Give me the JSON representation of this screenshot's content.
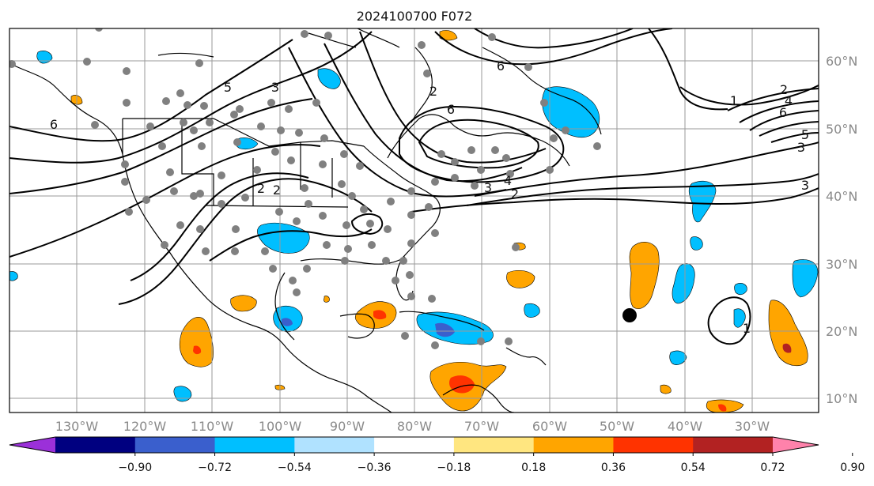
{
  "title": "2024100700 F072",
  "lon_labels": [
    "130°W",
    "120°W",
    "110°W",
    "100°W",
    "90°W",
    "80°W",
    "70°W",
    "60°W",
    "50°W",
    "40°W",
    "30°W"
  ],
  "lat_labels": [
    "60°N",
    "50°N",
    "40°N",
    "30°N",
    "20°N",
    "10°N"
  ],
  "colorbar": {
    "tick_labels": [
      "−0.90",
      "−0.72",
      "−0.54",
      "−0.36",
      "−0.18",
      "0.18",
      "0.36",
      "0.54",
      "0.72",
      "0.90"
    ],
    "colors": [
      "#9b30d9",
      "#000080",
      "#3a5fcd",
      "#00bfff",
      "#b0e2ff",
      "#ffffff",
      "#ffe680",
      "#ffa500",
      "#ff3300",
      "#b22222",
      "#ff82ab"
    ]
  },
  "contour_labels": [
    {
      "text": "6"
    },
    {
      "text": "5"
    },
    {
      "text": "3"
    },
    {
      "text": "2"
    },
    {
      "text": "2"
    },
    {
      "text": "6"
    },
    {
      "text": "6"
    },
    {
      "text": "4"
    },
    {
      "text": "3"
    },
    {
      "text": "2"
    },
    {
      "text": "2"
    },
    {
      "text": "1"
    },
    {
      "text": "2"
    },
    {
      "text": "4"
    },
    {
      "text": "6"
    },
    {
      "text": "5"
    },
    {
      "text": "3"
    },
    {
      "text": "3"
    },
    {
      "text": "1"
    }
  ],
  "icons": {
    "storm_marker": "black-dot",
    "stations": "gray-dots"
  },
  "colors": {
    "station": "#808080",
    "grid": "#9a9a9a"
  }
}
